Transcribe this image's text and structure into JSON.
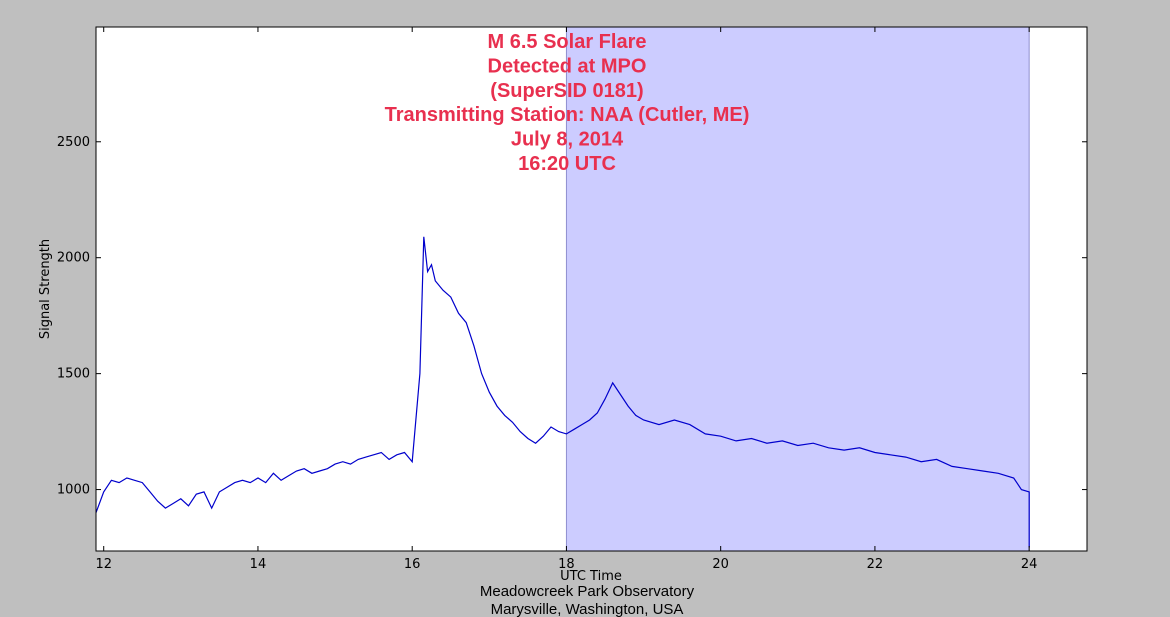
{
  "chart_data": {
    "type": "line",
    "title_lines": [
      "M 6.5 Solar Flare",
      "Detected at MPO",
      "(SuperSID 0181)",
      "Transmitting Station: NAA (Cutler, ME)",
      "July 8, 2014",
      "16:20 UTC"
    ],
    "xlabel": "UTC Time",
    "ylabel": "Signal Strength",
    "footer_lines": [
      "Meadowcreek Park Observatory",
      "Marysville, Washington, USA"
    ],
    "xlim": [
      11.9,
      24.75
    ],
    "ylim": [
      735,
      2995
    ],
    "x_ticks": [
      12,
      14,
      16,
      18,
      20,
      22,
      24
    ],
    "y_ticks": [
      1000,
      1500,
      2000,
      2500
    ],
    "grid": false,
    "shaded_region": {
      "x_start": 18,
      "x_end": 24,
      "color": "#ccccff"
    },
    "series": [
      {
        "color": "#0000cc",
        "x": [
          11.9,
          12.0,
          12.1,
          12.2,
          12.3,
          12.4,
          12.5,
          12.6,
          12.7,
          12.8,
          12.9,
          13.0,
          13.1,
          13.2,
          13.3,
          13.4,
          13.5,
          13.6,
          13.7,
          13.8,
          13.9,
          14.0,
          14.1,
          14.2,
          14.3,
          14.4,
          14.5,
          14.6,
          14.7,
          14.8,
          14.9,
          15.0,
          15.1,
          15.2,
          15.3,
          15.4,
          15.5,
          15.6,
          15.7,
          15.8,
          15.9,
          16.0,
          16.1,
          16.15,
          16.2,
          16.25,
          16.3,
          16.4,
          16.5,
          16.6,
          16.7,
          16.8,
          16.9,
          17.0,
          17.1,
          17.2,
          17.3,
          17.4,
          17.5,
          17.6,
          17.7,
          17.8,
          17.9,
          18.0,
          18.1,
          18.2,
          18.3,
          18.4,
          18.5,
          18.6,
          18.7,
          18.8,
          18.9,
          19.0,
          19.2,
          19.4,
          19.6,
          19.8,
          20.0,
          20.2,
          20.4,
          20.6,
          20.8,
          21.0,
          21.2,
          21.4,
          21.6,
          21.8,
          22.0,
          22.2,
          22.4,
          22.6,
          22.8,
          23.0,
          23.2,
          23.4,
          23.6,
          23.8,
          23.9,
          24.0,
          24.0
        ],
        "y": [
          900,
          990,
          1040,
          1030,
          1050,
          1040,
          1030,
          990,
          950,
          920,
          940,
          960,
          930,
          980,
          990,
          920,
          990,
          1010,
          1030,
          1040,
          1030,
          1050,
          1030,
          1070,
          1040,
          1060,
          1080,
          1090,
          1070,
          1080,
          1090,
          1110,
          1120,
          1110,
          1130,
          1140,
          1150,
          1160,
          1130,
          1150,
          1160,
          1120,
          1500,
          2090,
          1940,
          1970,
          1900,
          1860,
          1830,
          1760,
          1720,
          1620,
          1500,
          1420,
          1360,
          1320,
          1290,
          1250,
          1220,
          1200,
          1230,
          1270,
          1250,
          1240,
          1260,
          1280,
          1300,
          1330,
          1390,
          1460,
          1410,
          1360,
          1320,
          1300,
          1280,
          1300,
          1280,
          1240,
          1230,
          1210,
          1220,
          1200,
          1210,
          1190,
          1200,
          1180,
          1170,
          1180,
          1160,
          1150,
          1140,
          1120,
          1130,
          1100,
          1090,
          1080,
          1070,
          1050,
          1000,
          990,
          750
        ]
      }
    ]
  }
}
